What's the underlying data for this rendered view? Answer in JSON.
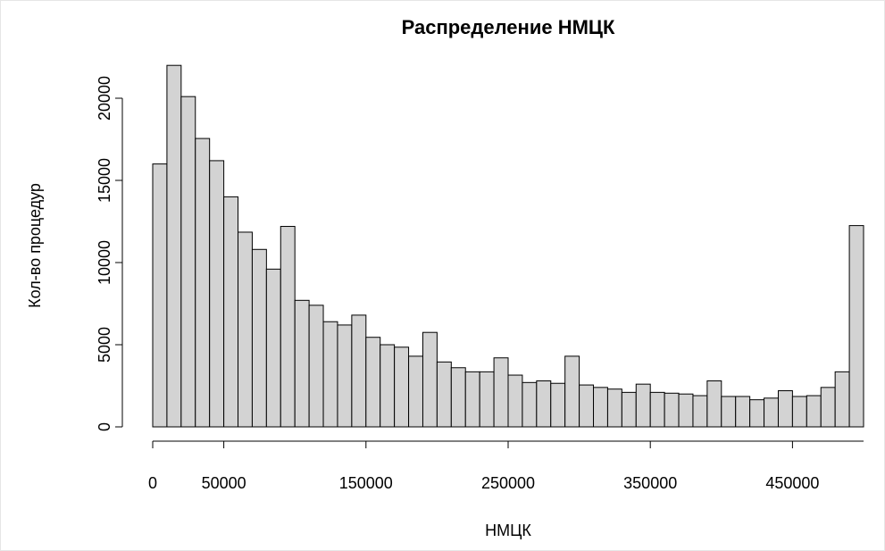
{
  "chart_data": {
    "type": "histogram",
    "title": "Распределение НМЦК",
    "xlabel": "НМЦК",
    "ylabel": "Кол-во процедур",
    "bins": [
      0,
      10000,
      20000,
      30000,
      40000,
      50000,
      60000,
      70000,
      80000,
      90000,
      100000,
      110000,
      120000,
      130000,
      140000,
      150000,
      160000,
      170000,
      180000,
      190000,
      200000,
      210000,
      220000,
      230000,
      240000,
      250000,
      260000,
      270000,
      280000,
      290000,
      300000,
      310000,
      320000,
      330000,
      340000,
      350000,
      360000,
      370000,
      380000,
      390000,
      400000,
      410000,
      420000,
      430000,
      440000,
      450000,
      460000,
      470000,
      480000,
      490000,
      500000
    ],
    "values": [
      16000,
      22000,
      20100,
      17550,
      16200,
      14000,
      11850,
      10800,
      9600,
      12200,
      7700,
      7400,
      6400,
      6200,
      6800,
      5450,
      5000,
      4850,
      4300,
      5750,
      3950,
      3600,
      3350,
      3350,
      4200,
      3150,
      2700,
      2800,
      2650,
      4300,
      2550,
      2400,
      2300,
      2100,
      2600,
      2100,
      2050,
      2000,
      1900,
      2800,
      1850,
      1850,
      1650,
      1750,
      2200,
      1850,
      1900,
      2400,
      3350,
      12250
    ],
    "color": "#d3d3d3",
    "xlim": [
      0,
      500000
    ],
    "xticks": [
      0,
      50000,
      150000,
      250000,
      350000,
      450000
    ],
    "ylim": [
      0,
      22000
    ],
    "yticks": [
      0,
      5000,
      10000,
      15000,
      20000
    ]
  }
}
